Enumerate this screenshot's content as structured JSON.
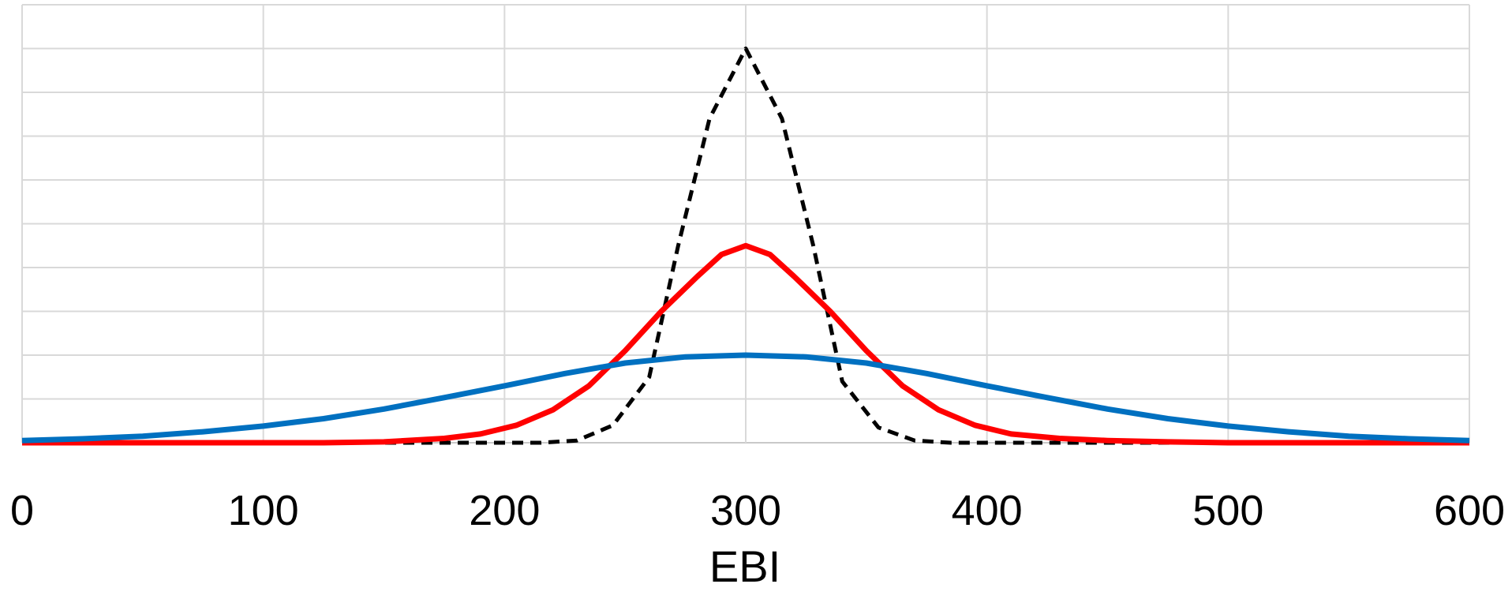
{
  "chart_data": {
    "type": "line",
    "title": "",
    "xlabel": "EBI",
    "ylabel": "",
    "xlim": [
      0,
      600
    ],
    "ylim": [
      0,
      10
    ],
    "grid": true,
    "y_tick_labels_shown": false,
    "x_ticks": [
      0,
      100,
      200,
      300,
      400,
      500,
      600
    ],
    "series": [
      {
        "color": "#000000",
        "style": "dashed",
        "x": [
          0,
          25,
          50,
          75,
          100,
          125,
          150,
          175,
          200,
          215,
          230,
          245,
          260,
          272,
          285,
          300,
          315,
          328,
          340,
          355,
          370,
          385,
          400,
          425,
          450,
          475,
          500,
          525,
          550,
          575,
          600
        ],
        "y": [
          0,
          0,
          0,
          0,
          0,
          0,
          0,
          0,
          0,
          0,
          0.05,
          0.4,
          1.5,
          4.5,
          7.4,
          9.0,
          7.4,
          4.5,
          1.4,
          0.35,
          0.05,
          0,
          0,
          0,
          0,
          0,
          0,
          0,
          0,
          0,
          0
        ]
      },
      {
        "color": "#ff0000",
        "style": "solid",
        "x": [
          0,
          25,
          50,
          75,
          100,
          125,
          150,
          175,
          190,
          205,
          220,
          235,
          250,
          265,
          280,
          290,
          300,
          310,
          320,
          335,
          350,
          365,
          380,
          395,
          410,
          430,
          450,
          475,
          500,
          525,
          550,
          575,
          600
        ],
        "y": [
          0,
          0,
          0,
          0,
          0,
          0,
          0.02,
          0.1,
          0.2,
          0.4,
          0.75,
          1.3,
          2.1,
          3.0,
          3.8,
          4.3,
          4.5,
          4.3,
          3.8,
          3.0,
          2.1,
          1.3,
          0.75,
          0.4,
          0.2,
          0.1,
          0.05,
          0.02,
          0,
          0,
          0,
          0,
          0
        ]
      },
      {
        "color": "#0070c0",
        "style": "solid",
        "x": [
          0,
          25,
          50,
          75,
          100,
          125,
          150,
          175,
          200,
          225,
          250,
          275,
          300,
          325,
          350,
          375,
          400,
          425,
          450,
          475,
          500,
          525,
          550,
          575,
          600
        ],
        "y": [
          0.05,
          0.09,
          0.15,
          0.25,
          0.38,
          0.55,
          0.77,
          1.03,
          1.3,
          1.58,
          1.82,
          1.96,
          2.0,
          1.96,
          1.82,
          1.58,
          1.3,
          1.03,
          0.77,
          0.55,
          0.38,
          0.25,
          0.15,
          0.09,
          0.05
        ]
      }
    ]
  }
}
